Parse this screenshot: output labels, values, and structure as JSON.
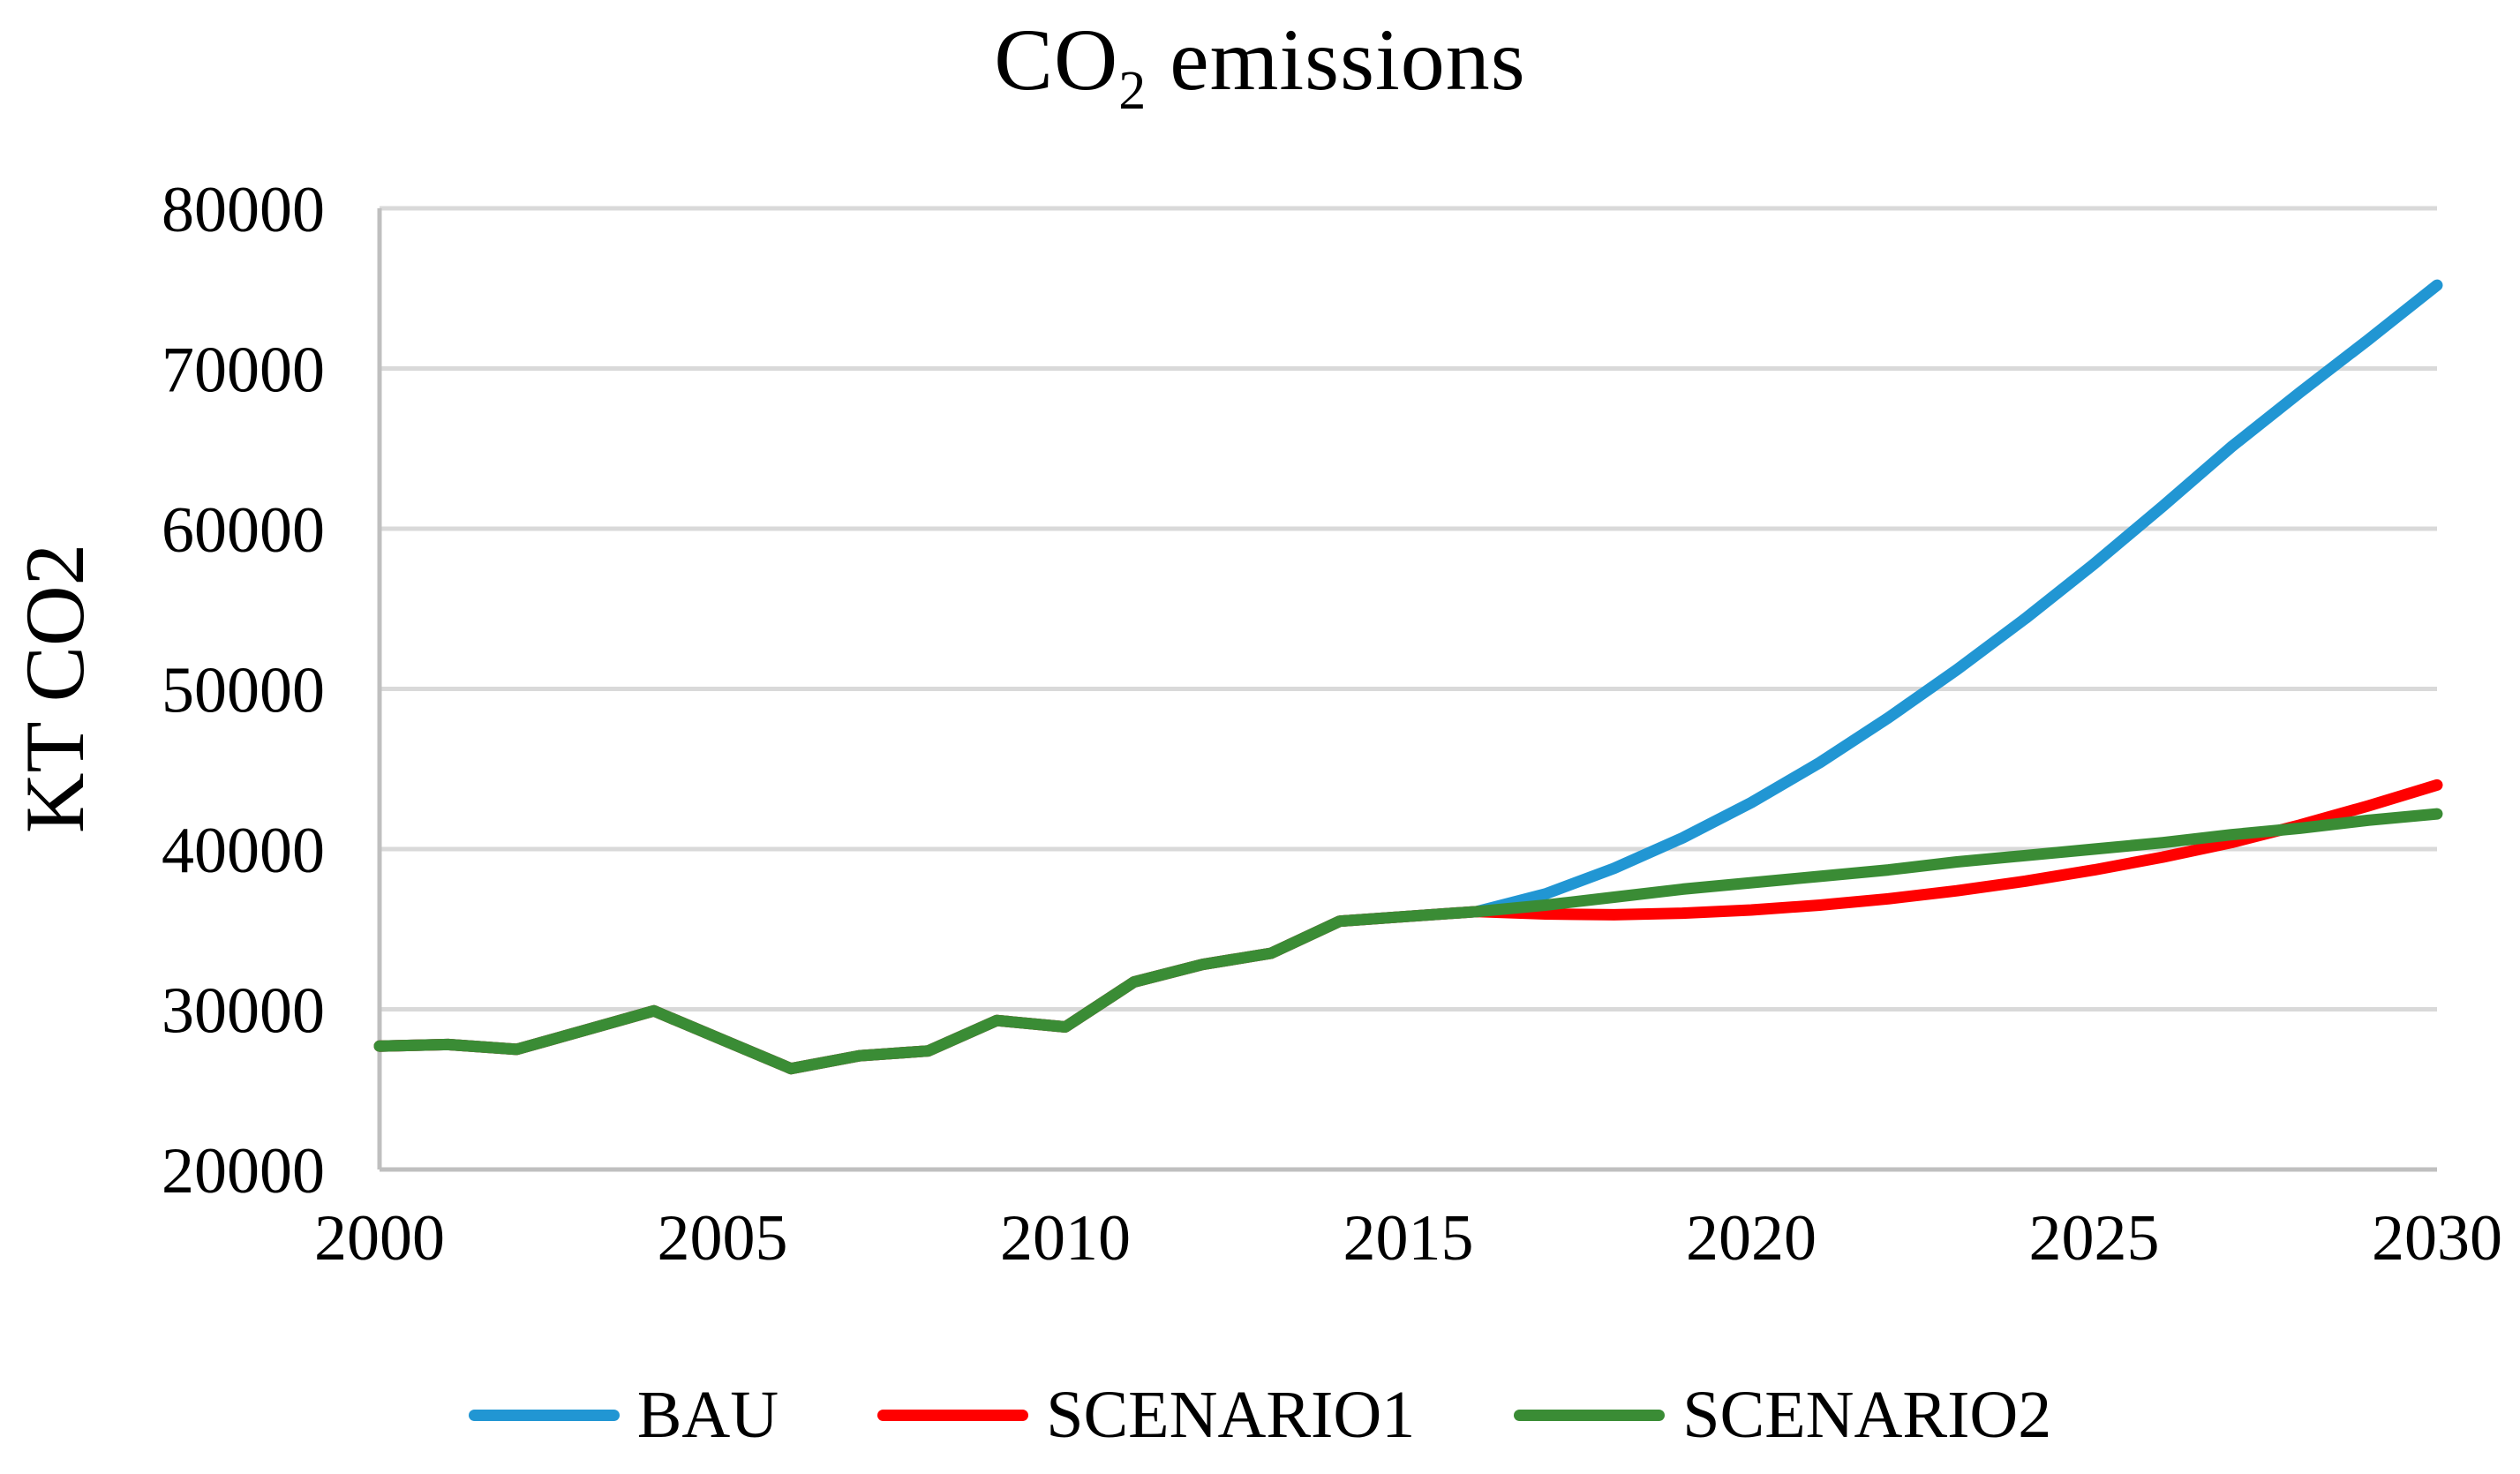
{
  "title": {
    "prefix": "CO",
    "subscript": "2",
    "suffix": " emissions"
  },
  "colors": {
    "gridline": "#D9D9D9",
    "axis": "#BFBFBF",
    "text": "#000000",
    "bau": "#2196D3",
    "scenario1": "#FF0000",
    "scenario2": "#3A8C35"
  },
  "chart_data": {
    "type": "line",
    "title": "CO2 emissions",
    "xlabel": "",
    "ylabel": "KT CO2",
    "xlim": [
      2000,
      2030
    ],
    "ylim": [
      20000,
      80000
    ],
    "x_ticks": [
      2000,
      2005,
      2010,
      2015,
      2020,
      2025,
      2030
    ],
    "y_ticks": [
      20000,
      30000,
      40000,
      50000,
      60000,
      70000,
      80000
    ],
    "grid": "horizontal",
    "legend_position": "bottom",
    "x": [
      2000,
      2001,
      2002,
      2003,
      2004,
      2005,
      2006,
      2007,
      2008,
      2009,
      2010,
      2011,
      2012,
      2013,
      2014,
      2015,
      2016,
      2017,
      2018,
      2019,
      2020,
      2021,
      2022,
      2023,
      2024,
      2025,
      2026,
      2027,
      2028,
      2029,
      2030
    ],
    "series": [
      {
        "name": "BAU",
        "color": "#2196D3",
        "values": [
          27700,
          27800,
          27500,
          28700,
          29900,
          28100,
          26300,
          27100,
          27400,
          29300,
          28900,
          31700,
          32800,
          33500,
          35500,
          35800,
          36100,
          37200,
          38800,
          40700,
          42900,
          45400,
          48200,
          51200,
          54400,
          57800,
          61400,
          65100,
          68500,
          71800,
          75200
        ]
      },
      {
        "name": "SCENARIO1",
        "color": "#FF0000",
        "values": [
          27700,
          27800,
          27500,
          28700,
          29900,
          28100,
          26300,
          27100,
          27400,
          29300,
          28900,
          31700,
          32800,
          33500,
          35500,
          35800,
          36100,
          35950,
          35900,
          36000,
          36200,
          36500,
          36900,
          37400,
          38000,
          38700,
          39500,
          40400,
          41500,
          42700,
          44000
        ]
      },
      {
        "name": "SCENARIO2",
        "color": "#3A8C35",
        "values": [
          27700,
          27800,
          27500,
          28700,
          29900,
          28100,
          26300,
          27100,
          27400,
          29300,
          28900,
          31700,
          32800,
          33500,
          35500,
          35800,
          36100,
          36500,
          37000,
          37500,
          37900,
          38300,
          38700,
          39200,
          39600,
          40000,
          40400,
          40900,
          41300,
          41800,
          42200
        ]
      }
    ]
  }
}
